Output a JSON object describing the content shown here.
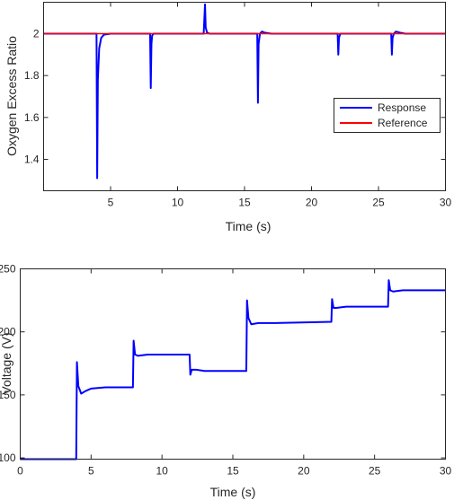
{
  "colors": {
    "response": "#0000ff",
    "reference": "#ff0000",
    "axis": "#262626",
    "background": "#ffffff"
  },
  "chart_data": [
    {
      "type": "line",
      "xlabel": "Time (s)",
      "ylabel": "Oxygen Excess Ratio",
      "xlim": [
        0,
        30
      ],
      "ylim": [
        1.25,
        2.15
      ],
      "xticks": [
        5,
        10,
        15,
        20,
        25,
        30
      ],
      "yticks": [
        1.4,
        1.6,
        1.8,
        2
      ],
      "grid": false,
      "legend_position": "center-right",
      "series": [
        {
          "name": "Response",
          "color": "#0000ff",
          "x": [
            0,
            3.95,
            4.0,
            4.05,
            4.15,
            4.3,
            4.5,
            5.0,
            6.0,
            7.95,
            8.0,
            8.05,
            8.1,
            8.2,
            9.0,
            11.95,
            12.05,
            12.1,
            12.2,
            12.4,
            13.0,
            15.95,
            16.0,
            16.05,
            16.15,
            16.3,
            16.5,
            17.0,
            21.95,
            22.0,
            22.05,
            22.15,
            22.3,
            25.95,
            26.0,
            26.05,
            26.15,
            26.3,
            26.6,
            27.0,
            30
          ],
          "y": [
            2.0,
            2.0,
            1.31,
            1.78,
            1.93,
            1.98,
            1.995,
            2.0,
            2.0,
            2.0,
            1.74,
            1.95,
            1.99,
            2.0,
            2.0,
            2.0,
            2.14,
            2.03,
            2.005,
            2.0,
            2.0,
            2.0,
            1.67,
            1.95,
            2.0,
            2.01,
            2.005,
            2.0,
            2.0,
            1.9,
            1.98,
            2.0,
            2.0,
            2.0,
            1.9,
            1.98,
            2.0,
            2.01,
            2.005,
            2.0,
            2.0
          ]
        },
        {
          "name": "Reference",
          "color": "#ff0000",
          "x": [
            0,
            30
          ],
          "y": [
            2.0,
            2.0
          ]
        }
      ]
    },
    {
      "type": "line",
      "xlabel": "Time (s)",
      "ylabel": "Voltage (V)",
      "xlim": [
        0,
        30
      ],
      "ylim": [
        99,
        250
      ],
      "xticks": [
        0,
        5,
        10,
        15,
        20,
        25,
        30
      ],
      "yticks": [
        100,
        150,
        200,
        250
      ],
      "grid": false,
      "series": [
        {
          "color": "#0000ff",
          "x": [
            0,
            3.95,
            4.0,
            4.1,
            4.3,
            4.6,
            5.0,
            6.0,
            7.95,
            8.0,
            8.1,
            8.3,
            9.0,
            11.95,
            12.0,
            12.1,
            12.4,
            13.0,
            15.95,
            16.0,
            16.1,
            16.3,
            16.8,
            18.0,
            21.95,
            22.0,
            22.1,
            22.3,
            23.0,
            25.95,
            26.0,
            26.1,
            26.3,
            27.0,
            30
          ],
          "y": [
            99,
            99,
            176,
            157,
            151,
            153,
            155,
            156,
            156,
            193,
            182,
            181,
            182,
            182,
            166,
            170,
            170,
            169,
            169,
            225,
            211,
            206,
            207,
            207,
            208,
            226,
            219,
            219,
            220,
            220,
            241,
            233,
            232,
            233,
            233
          ]
        }
      ]
    }
  ]
}
